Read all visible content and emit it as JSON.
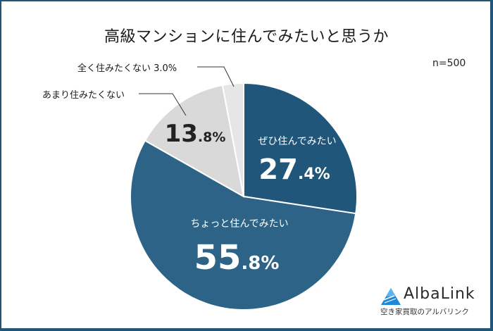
{
  "title": "高級マンションに住んでみたいと思うか",
  "sample_size": "n=500",
  "colors": {
    "frame": "#1f5679",
    "slice_1": "#1f5679",
    "slice_2": "#2d6386",
    "slice_3": "#d9d9d9",
    "slice_4": "#e6e6e6",
    "leader": "#333333"
  },
  "labels": {
    "s1_cat": "ぜひ住んでみたい",
    "s1_int": "27",
    "s1_dec": ".4%",
    "s2_cat": "ちょっと住んでみたい",
    "s2_int": "55",
    "s2_dec": ".8%",
    "s3_cat": "あまり住みたくない",
    "s3_int": "13",
    "s3_dec": ".8%",
    "s4_cat": "全く住みたくない 3.0%"
  },
  "logo": {
    "brand": "AlbaLink",
    "tagline": "空き家買取のアルバリンク"
  },
  "chart_data": {
    "type": "pie",
    "title": "高級マンションに住んでみたいと思うか",
    "subtitle": "n=500",
    "categories": [
      "ぜひ住んでみたい",
      "ちょっと住んでみたい",
      "あまり住みたくない",
      "全く住みたくない"
    ],
    "values": [
      27.4,
      55.8,
      13.8,
      3.0
    ],
    "unit": "%",
    "start_angle_deg": 0,
    "direction": "clockwise",
    "colors": [
      "#1f5679",
      "#2d6386",
      "#d9d9d9",
      "#e6e6e6"
    ],
    "center": [
      346,
      279
    ],
    "radius": 161,
    "legend": "none (labels on/near slices)"
  }
}
